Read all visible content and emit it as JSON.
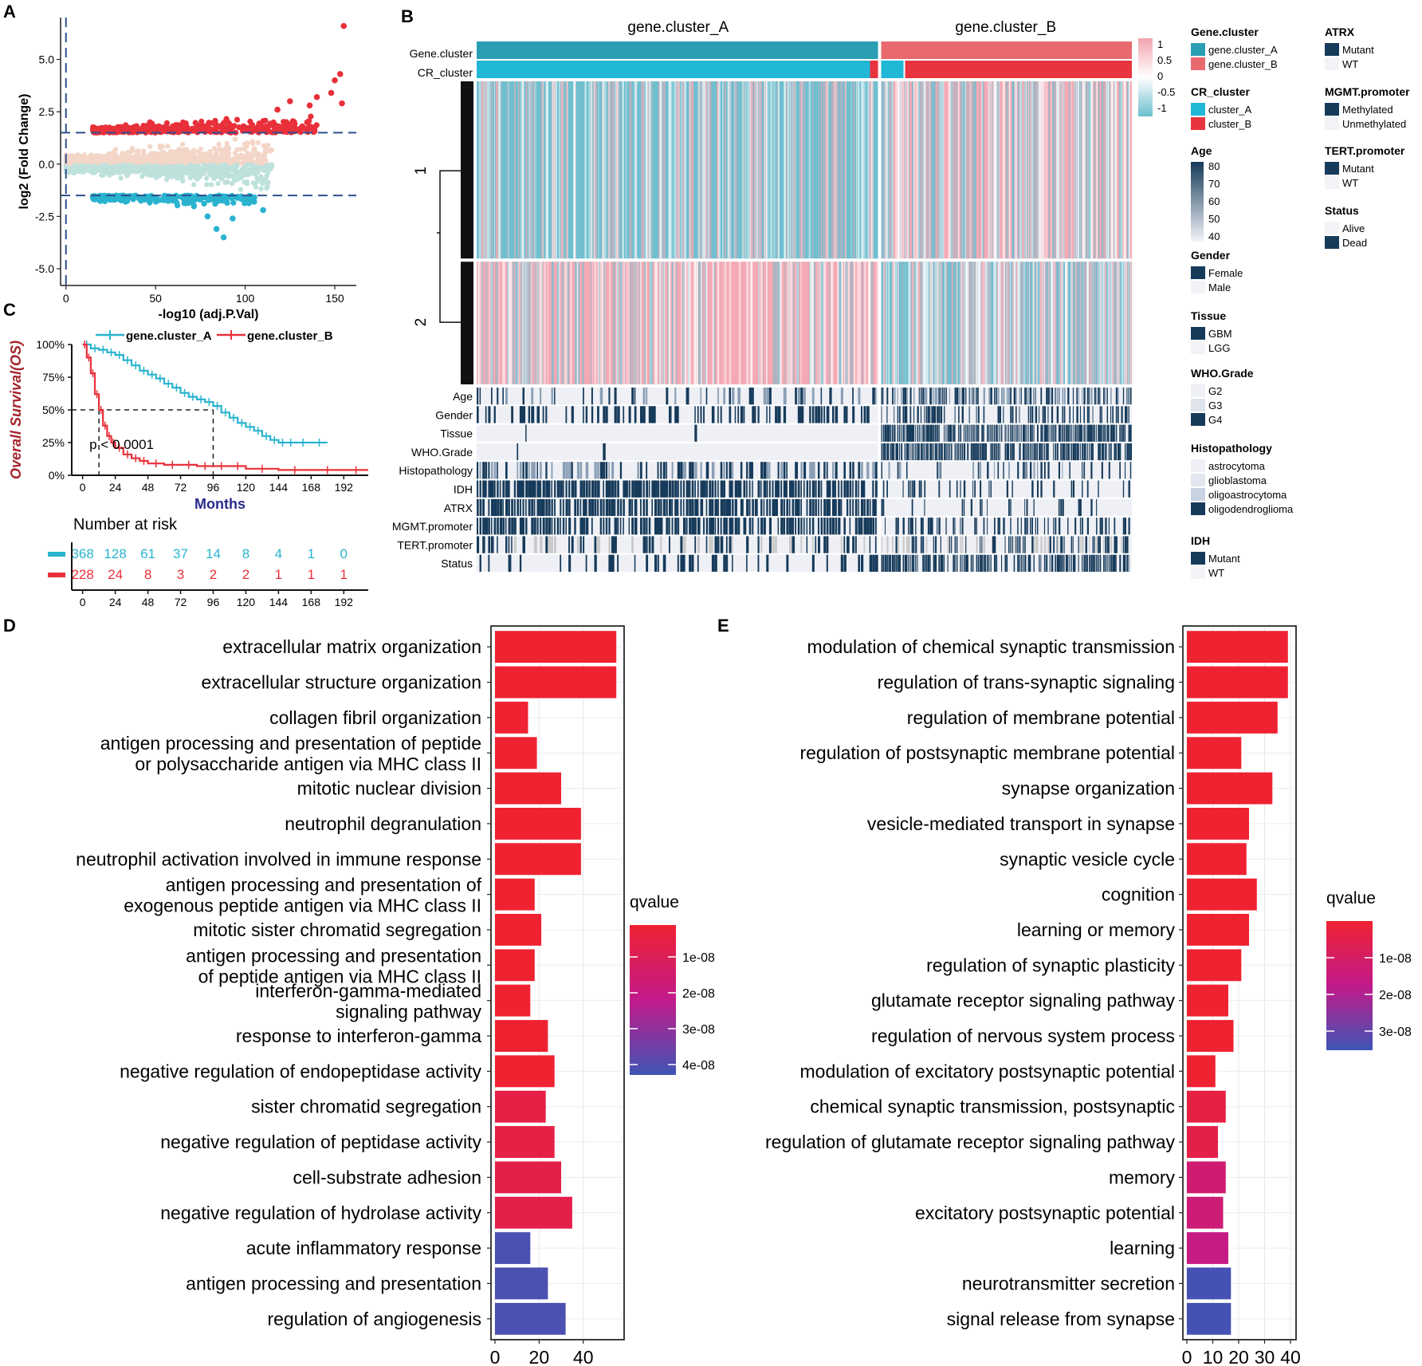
{
  "panel_labels": {
    "a": "A",
    "b": "B",
    "c": "C",
    "d": "D",
    "e": "E"
  },
  "colors": {
    "red": "#e8303a",
    "redlight": "#f3d6c8",
    "blue": "#29b3cf",
    "bluelight": "#bfe1dc",
    "teal": "#2a9fb3",
    "salmon": "#e86a6f",
    "crblue": "#21b7d6",
    "crred": "#e8343f",
    "navy": "#163a5a",
    "heatblue": "#6fbfcf",
    "heatpink": "#f4a9b4",
    "grad_top": "#ef2232",
    "grad_mid": "#c21a8a",
    "grad_bot": "#3f55b5"
  },
  "chart_data": [
    {
      "id": "A",
      "type": "scatter",
      "title": "",
      "xlabel": "-log10 (adj.P.Val)",
      "ylabel": "log2 (Fold Change)",
      "xlim": [
        -3,
        162
      ],
      "ylim": [
        -5.8,
        7
      ],
      "xticks": [
        0,
        50,
        100,
        150
      ],
      "yticks": [
        5.0,
        2.5,
        0.0,
        -2.5,
        -5.0
      ],
      "ytick_labels": [
        "5.0",
        "2.5",
        "0.0",
        "-2.5",
        "-5.0"
      ],
      "thresholds": {
        "y_up": 1.5,
        "y_down": -1.5,
        "x": 0
      },
      "groups": [
        "up-significant",
        "up-nonsignificant",
        "down-nonsignificant",
        "down-significant"
      ],
      "extreme_points": [
        [
          155,
          6.6
        ],
        [
          153,
          4.3
        ],
        [
          150,
          4.0
        ],
        [
          148,
          3.4
        ],
        [
          154,
          2.9
        ],
        [
          140,
          3.2
        ],
        [
          136,
          2.8
        ],
        [
          125,
          3.0
        ],
        [
          118,
          2.6
        ],
        [
          110,
          -2.2
        ],
        [
          105,
          -1.8
        ],
        [
          93,
          -2.6
        ],
        [
          88,
          -3.5
        ],
        [
          84,
          -3.1
        ],
        [
          79,
          -2.5
        ]
      ]
    },
    {
      "id": "B",
      "type": "heatmap",
      "columns": [
        "gene.cluster_A",
        "gene.cluster_B"
      ],
      "column_fraction_A": 0.615,
      "row_cluster_labels": [
        "1",
        "2"
      ],
      "row_cluster_fraction_1": 0.59,
      "scale_ticks": [
        "1",
        "0.5",
        "0",
        "-0.5",
        "-1"
      ],
      "top_annotation": [
        "Gene.cluster",
        "CR_cluster"
      ],
      "bottom_annotation": [
        "Age",
        "Gender",
        "Tissue",
        "WHO.Grade",
        "Histopathology",
        "IDH",
        "ATRX",
        "MGMT.promoter",
        "TERT.promoter",
        "Status"
      ],
      "annotation_density_A": [
        0.3,
        0.5,
        0.02,
        0.02,
        0.6,
        0.92,
        0.92,
        0.85,
        0.5,
        0.25
      ],
      "annotation_density_B": [
        0.6,
        0.5,
        0.85,
        0.85,
        0.3,
        0.25,
        0.15,
        0.4,
        0.6,
        0.75
      ],
      "legend": [
        {
          "title": "Gene.cluster",
          "entries": [
            "gene.cluster_A",
            "gene.cluster_B"
          ]
        },
        {
          "title": "CR_cluster",
          "entries": [
            "cluster_A",
            "cluster_B"
          ]
        },
        {
          "title": "Age",
          "ticks": [
            "80",
            "70",
            "60",
            "50",
            "40"
          ]
        },
        {
          "title": "Gender",
          "entries": [
            "Female",
            "Male"
          ]
        },
        {
          "title": "Tissue",
          "entries": [
            "GBM",
            "LGG"
          ]
        },
        {
          "title": "WHO.Grade",
          "entries": [
            "G2",
            "G3",
            "G4"
          ]
        },
        {
          "title": "Histopathology",
          "entries": [
            "astrocytoma",
            "glioblastoma",
            "oligoastrocytoma",
            "oligodendroglioma"
          ]
        },
        {
          "title": "IDH",
          "entries": [
            "Mutant",
            "WT"
          ]
        },
        {
          "title": "ATRX",
          "entries": [
            "Mutant",
            "WT"
          ]
        },
        {
          "title": "MGMT.promoter",
          "entries": [
            "Methylated",
            "Unmethylated"
          ]
        },
        {
          "title": "TERT.promoter",
          "entries": [
            "Mutant",
            "WT"
          ]
        },
        {
          "title": "Status",
          "entries": [
            "Alive",
            "Dead"
          ]
        }
      ]
    },
    {
      "id": "C",
      "type": "line",
      "xlabel": "Months",
      "ylabel": "Overall Survival(OS)",
      "xlim": [
        -8,
        210
      ],
      "ylim": [
        0,
        1
      ],
      "xticks": [
        0,
        24,
        48,
        72,
        96,
        120,
        144,
        168,
        192
      ],
      "yticks": [
        1,
        0.75,
        0.5,
        0.25,
        0
      ],
      "ytick_labels": [
        "100%",
        "75%",
        "50%",
        "25%",
        "0%"
      ],
      "pvalue": "p < 0.0001",
      "median_lines": [
        12,
        96
      ],
      "series": [
        {
          "name": "gene.cluster_A",
          "x": [
            0,
            6,
            12,
            18,
            24,
            30,
            36,
            42,
            48,
            54,
            60,
            66,
            72,
            78,
            84,
            90,
            96,
            102,
            108,
            114,
            120,
            126,
            132,
            138,
            144,
            150,
            156,
            168,
            180
          ],
          "y": [
            1,
            0.97,
            0.96,
            0.94,
            0.92,
            0.88,
            0.84,
            0.8,
            0.77,
            0.74,
            0.7,
            0.67,
            0.63,
            0.6,
            0.58,
            0.56,
            0.53,
            0.48,
            0.44,
            0.4,
            0.37,
            0.34,
            0.3,
            0.27,
            0.25,
            0.25,
            0.25,
            0.25,
            0.25
          ]
        },
        {
          "name": "gene.cluster_B",
          "x": [
            0,
            3,
            6,
            9,
            12,
            15,
            18,
            21,
            24,
            30,
            36,
            42,
            48,
            60,
            72,
            84,
            96,
            108,
            120,
            144,
            168,
            192,
            210
          ],
          "y": [
            1,
            0.9,
            0.78,
            0.62,
            0.5,
            0.38,
            0.3,
            0.25,
            0.21,
            0.16,
            0.13,
            0.11,
            0.09,
            0.08,
            0.08,
            0.07,
            0.07,
            0.07,
            0.05,
            0.04,
            0.04,
            0.04,
            0.04
          ]
        }
      ],
      "risk_table": {
        "title": "Number at risk",
        "rows": [
          {
            "name": "gene.cluster_A",
            "values": [
              "368",
              "128",
              "61",
              "37",
              "14",
              "8",
              "4",
              "1",
              "0"
            ]
          },
          {
            "name": "gene.cluster_B",
            "values": [
              "228",
              "24",
              "8",
              "3",
              "2",
              "2",
              "1",
              "1",
              "1"
            ]
          }
        ]
      }
    },
    {
      "id": "D",
      "type": "bar",
      "orientation": "horizontal",
      "legend_title": "qvalue",
      "legend_ticks": [
        "1e-08",
        "2e-08",
        "3e-08",
        "4e-08"
      ],
      "xlim": [
        0,
        56
      ],
      "xticks": [
        0,
        20,
        40
      ],
      "categories": [
        [
          "extracellular matrix organization"
        ],
        [
          "extracellular structure organization"
        ],
        [
          "collagen fibril organization"
        ],
        [
          "antigen processing and presentation of peptide",
          "or polysaccharide antigen via MHC class II"
        ],
        [
          "mitotic nuclear division"
        ],
        [
          "neutrophil degranulation"
        ],
        [
          "neutrophil activation involved in immune response"
        ],
        [
          "antigen processing and presentation of",
          "exogenous peptide antigen via MHC class II"
        ],
        [
          "mitotic sister chromatid segregation"
        ],
        [
          "antigen processing and presentation",
          "of peptide antigen via MHC class II"
        ],
        [
          "interferon-gamma-mediated",
          "signaling pathway"
        ],
        [
          "response to interferon-gamma"
        ],
        [
          "negative regulation of endopeptidase activity"
        ],
        [
          "sister chromatid segregation"
        ],
        [
          "negative regulation of peptidase activity"
        ],
        [
          "cell-substrate adhesion"
        ],
        [
          "negative regulation of hydrolase activity"
        ],
        [
          "acute inflammatory response"
        ],
        [
          "antigen processing and presentation"
        ],
        [
          "regulation of angiogenesis"
        ]
      ],
      "values": [
        55,
        55,
        15,
        19,
        30,
        39,
        39,
        18,
        21,
        18,
        16,
        24,
        27,
        23,
        27,
        30,
        35,
        16,
        24,
        32
      ],
      "qvalues": [
        1e-10,
        1e-10,
        1e-10,
        1e-10,
        1e-10,
        1e-10,
        1e-10,
        1e-10,
        1e-10,
        1e-10,
        1e-10,
        1e-10,
        1e-10,
        5e-09,
        5e-09,
        6e-09,
        6e-09,
        4.2e-08,
        4.2e-08,
        4.2e-08
      ]
    },
    {
      "id": "E",
      "type": "bar",
      "orientation": "horizontal",
      "legend_title": "qvalue",
      "legend_ticks": [
        "1e-08",
        "2e-08",
        "3e-08"
      ],
      "xlim": [
        0,
        40
      ],
      "xticks": [
        0,
        10,
        20,
        30,
        40
      ],
      "categories": [
        [
          "modulation of chemical synaptic transmission"
        ],
        [
          "regulation of trans-synaptic signaling"
        ],
        [
          "regulation of membrane potential"
        ],
        [
          "regulation of postsynaptic membrane potential"
        ],
        [
          "synapse organization"
        ],
        [
          "vesicle-mediated transport in synapse"
        ],
        [
          "synaptic vesicle cycle"
        ],
        [
          "cognition"
        ],
        [
          "learning or memory"
        ],
        [
          "regulation of synaptic plasticity"
        ],
        [
          "glutamate receptor signaling pathway"
        ],
        [
          "regulation of nervous system process"
        ],
        [
          "modulation of excitatory postsynaptic potential"
        ],
        [
          "chemical synaptic transmission, postsynaptic"
        ],
        [
          "regulation of glutamate receptor signaling pathway"
        ],
        [
          "memory"
        ],
        [
          "excitatory postsynaptic potential"
        ],
        [
          "learning"
        ],
        [
          "neurotransmitter secretion"
        ],
        [
          "signal release from synapse"
        ]
      ],
      "values": [
        39,
        39,
        35,
        21,
        33,
        24,
        23,
        27,
        24,
        21,
        16,
        18,
        11,
        15,
        12,
        15,
        14,
        16,
        17,
        17
      ],
      "qvalues": [
        1e-10,
        1e-10,
        1e-10,
        1e-10,
        1e-10,
        1e-10,
        1e-10,
        1e-10,
        1e-10,
        1e-10,
        1e-10,
        1e-10,
        1e-10,
        4e-09,
        5e-09,
        1.3e-08,
        1.4e-08,
        1.7e-08,
        3.6e-08,
        3.6e-08
      ]
    }
  ]
}
